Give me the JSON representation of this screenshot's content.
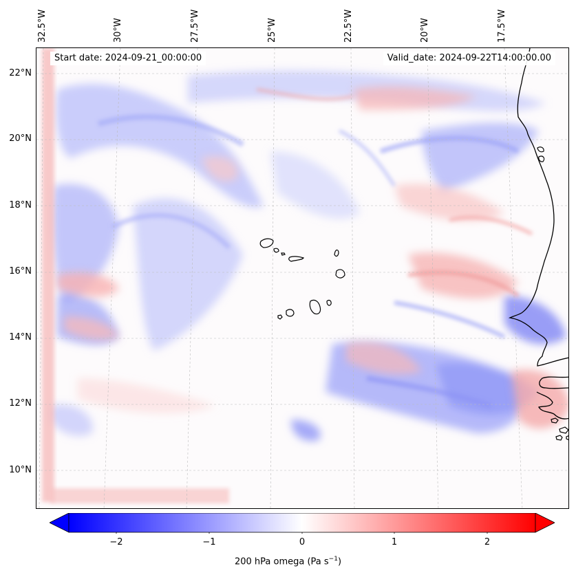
{
  "map": {
    "start_date": "Start date: 2024-09-21_00:00:00",
    "valid_date": "Valid_date: 2024-09-22T14:00:00.00",
    "longitude_labels": [
      "32.5°W",
      "30°W",
      "27.5°W",
      "25°W",
      "22.5°W",
      "20°W",
      "17.5°W"
    ],
    "latitude_labels": [
      "22°N",
      "20°N",
      "18°N",
      "16°N",
      "14°N",
      "12°N",
      "10°N"
    ],
    "field": "200 hPa omega"
  },
  "colorbar": {
    "ticks": [
      "−2",
      "−1",
      "0",
      "1",
      "2"
    ],
    "label_text": "200 hPa omega (Pa s",
    "label_unit_exp": "−1",
    "label_close": ")",
    "range": [
      -2.6,
      2.6
    ],
    "colormap": "bwr",
    "low_color": "#0000ff",
    "mid_color": "#ffffff",
    "high_color": "#ff0000"
  }
}
